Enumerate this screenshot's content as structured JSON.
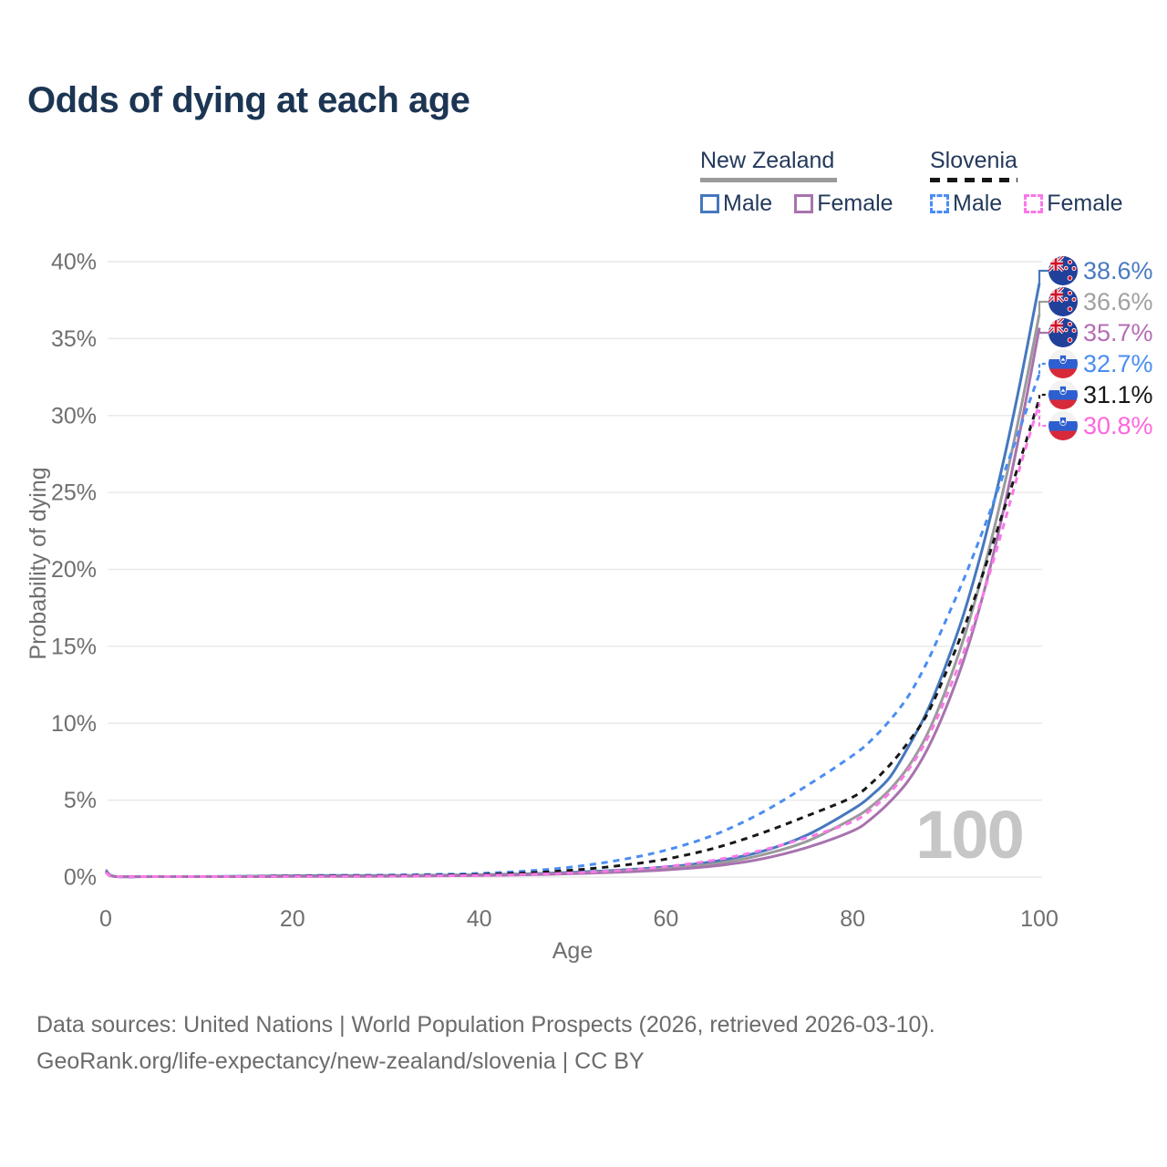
{
  "header": {
    "title": "Odds of dying at each age"
  },
  "legend": {
    "groups": [
      {
        "name": "New Zealand",
        "style": "solid",
        "line_color": "#9a9a9a",
        "items": [
          {
            "label": "Male",
            "color": "#4678bd"
          },
          {
            "label": "Female",
            "color": "#a873ae"
          }
        ]
      },
      {
        "name": "Slovenia",
        "style": "dashed",
        "line_color": "#161616",
        "items": [
          {
            "label": "Male",
            "color": "#4b8ef2"
          },
          {
            "label": "Female",
            "color": "#fa78e8"
          }
        ]
      }
    ]
  },
  "chart_data": {
    "type": "line",
    "title": "Odds of dying at each age",
    "xlabel": "Age",
    "ylabel": "Probability of dying",
    "xlim": [
      0,
      100
    ],
    "ylim": [
      0,
      40
    ],
    "xticks": [
      0,
      20,
      40,
      60,
      80,
      100
    ],
    "yticks": [
      0,
      5,
      10,
      15,
      20,
      25,
      30,
      35,
      40
    ],
    "grid": "horizontal",
    "watermark": "100",
    "legend_position": "top-right",
    "ages": [
      0,
      1,
      5,
      10,
      15,
      20,
      25,
      30,
      35,
      40,
      45,
      50,
      55,
      60,
      65,
      70,
      75,
      80,
      82,
      84,
      86,
      88,
      90,
      92,
      94,
      96,
      98,
      100
    ],
    "series": [
      {
        "id": "nz-male",
        "name": "New Zealand Male",
        "country": "New Zealand",
        "sex": "Male",
        "color": "#4678bd",
        "label_color": "#4a7ac0",
        "dash": false,
        "flag": "nz",
        "end_label": "38.6%",
        "values": [
          0.46,
          0.04,
          0.01,
          0.012,
          0.05,
          0.09,
          0.1,
          0.1,
          0.12,
          0.15,
          0.21,
          0.31,
          0.45,
          0.66,
          1.0,
          1.62,
          2.7,
          4.4,
          5.3,
          6.5,
          8.5,
          10.8,
          13.8,
          17.3,
          21.6,
          26.6,
          32.3,
          38.6
        ]
      },
      {
        "id": "nz-both",
        "name": "New Zealand Both sexes",
        "country": "New Zealand",
        "sex": "Both",
        "color": "#9b9b9b",
        "label_color": "#a0a0a0",
        "dash": false,
        "flag": "nz",
        "end_label": "36.6%",
        "values": [
          0.42,
          0.035,
          0.009,
          0.01,
          0.04,
          0.07,
          0.075,
          0.08,
          0.1,
          0.13,
          0.18,
          0.26,
          0.38,
          0.56,
          0.85,
          1.4,
          2.3,
          3.8,
          4.6,
          5.7,
          7.2,
          9.3,
          12.2,
          15.7,
          19.9,
          24.8,
          30.4,
          36.6
        ]
      },
      {
        "id": "nz-female",
        "name": "New Zealand Female",
        "country": "New Zealand",
        "sex": "Female",
        "color": "#a873ae",
        "label_color": "#b56cb5",
        "dash": false,
        "flag": "nz",
        "end_label": "35.7%",
        "values": [
          0.38,
          0.03,
          0.008,
          0.009,
          0.03,
          0.04,
          0.045,
          0.055,
          0.075,
          0.1,
          0.15,
          0.22,
          0.32,
          0.47,
          0.71,
          1.15,
          1.9,
          3.0,
          3.8,
          4.9,
          6.3,
          8.3,
          11.0,
          14.3,
          18.4,
          23.4,
          29.2,
          35.7
        ]
      },
      {
        "id": "si-male",
        "name": "Slovenia Male",
        "country": "Slovenia",
        "sex": "Male",
        "color": "#4b8ef2",
        "label_color": "#4a8ef0",
        "dash": true,
        "flag": "si",
        "end_label": "32.7%",
        "values": [
          0.35,
          0.03,
          0.01,
          0.012,
          0.045,
          0.09,
          0.11,
          0.13,
          0.17,
          0.24,
          0.39,
          0.66,
          1.1,
          1.75,
          2.7,
          4.1,
          5.9,
          7.9,
          8.9,
          10.2,
          11.8,
          14.0,
          16.7,
          19.5,
          22.6,
          25.9,
          29.3,
          32.7
        ]
      },
      {
        "id": "si-both",
        "name": "Slovenia Both sexes",
        "country": "Slovenia",
        "sex": "Both",
        "color": "#181818",
        "label_color": "#161616",
        "dash": true,
        "flag": "si",
        "end_label": "31.1%",
        "values": [
          0.32,
          0.025,
          0.009,
          0.01,
          0.035,
          0.065,
          0.08,
          0.09,
          0.12,
          0.17,
          0.27,
          0.45,
          0.74,
          1.17,
          1.85,
          2.8,
          3.95,
          5.2,
          6.1,
          7.3,
          8.8,
          10.6,
          13.3,
          16.3,
          19.8,
          23.5,
          27.2,
          31.1
        ]
      },
      {
        "id": "si-female",
        "name": "Slovenia Female",
        "country": "Slovenia",
        "sex": "Female",
        "color": "#fa78e8",
        "label_color": "#ff66dd",
        "dash": true,
        "flag": "si",
        "end_label": "30.8%",
        "values": [
          0.3,
          0.02,
          0.008,
          0.009,
          0.028,
          0.042,
          0.05,
          0.06,
          0.08,
          0.11,
          0.17,
          0.27,
          0.43,
          0.68,
          1.08,
          1.7,
          2.55,
          3.6,
          4.4,
          5.5,
          7.0,
          9.0,
          11.7,
          14.8,
          18.4,
          22.5,
          26.8,
          30.8
        ]
      }
    ]
  },
  "footer": {
    "line1": "Data sources: United Nations | World Population Prospects (2026, retrieved 2026-03-10).",
    "line2": "GeoRank.org/life-expectancy/new-zealand/slovenia | CC BY"
  }
}
